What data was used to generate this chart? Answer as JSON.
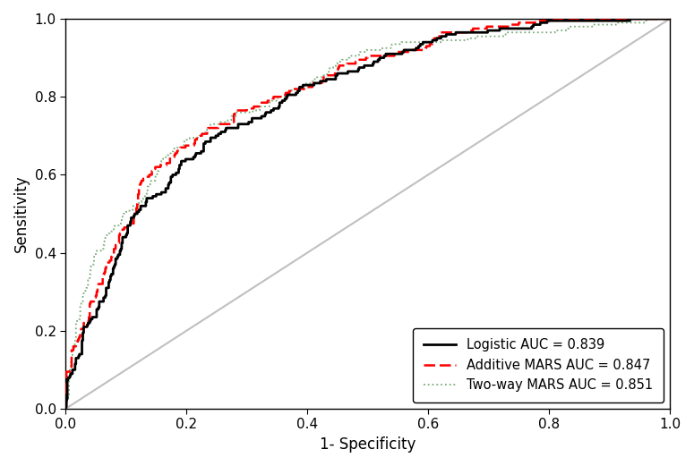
{
  "title": "",
  "xlabel": "1- Specificity",
  "ylabel": "Sensitivity",
  "xlim": [
    0.0,
    1.0
  ],
  "ylim": [
    0.0,
    1.0
  ],
  "xticks": [
    0.0,
    0.2,
    0.4,
    0.6,
    0.8,
    1.0
  ],
  "yticks": [
    0.0,
    0.2,
    0.4,
    0.6,
    0.8,
    1.0
  ],
  "legend_labels": [
    "Logistic AUC = 0.839",
    "Additive MARS AUC = 0.847",
    "Two-way MARS AUC = 0.851"
  ],
  "logistic_color": "#000000",
  "additive_mars_color": "#FF0000",
  "twoway_mars_color": "#7aab7a",
  "diagonal_color": "#C0C0C0",
  "background_color": "#FFFFFF",
  "auc_logistic": 0.839,
  "auc_additive": 0.847,
  "auc_twoway": 0.851,
  "figsize": [
    7.75,
    5.21
  ],
  "dpi": 100
}
